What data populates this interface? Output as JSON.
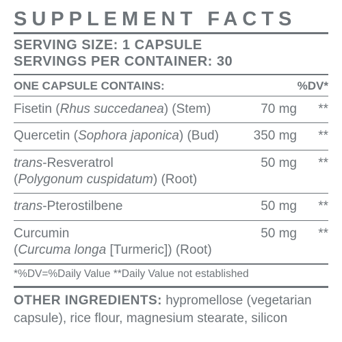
{
  "colors": {
    "text": "#6e7479",
    "background": "#ffffff"
  },
  "title": "SUPPLEMENT FACTS",
  "serving_size_label": "SERVING SIZE:",
  "serving_size_value": "1 CAPSULE",
  "servings_per_container_label": "SERVINGS PER CONTAINER:",
  "servings_per_container_value": "30",
  "table": {
    "header_left": "ONE CAPSULE CONTAINS:",
    "header_dv": "%DV*",
    "rows": [
      {
        "name": "Fisetin",
        "source": "Rhus succedanea",
        "part": "(Stem)",
        "amount": "70 mg",
        "dv": "**"
      },
      {
        "name": "Quercetin",
        "source": "Sophora japonica",
        "part": "(Bud)",
        "amount": "350 mg",
        "dv": "**"
      },
      {
        "name": "trans-Resveratrol",
        "source": "Polygonum cuspidatum",
        "part": "(Root)",
        "amount": "50 mg",
        "dv": "**",
        "source_newline": true
      },
      {
        "name": "trans-Pterostilbene",
        "source": "",
        "part": "",
        "amount": "50 mg",
        "dv": "**"
      },
      {
        "name": "Curcumin",
        "source": "Curcuma longa",
        "part": "[Turmeric]) (Root)",
        "amount": "50 mg",
        "dv": "**",
        "source_newline": true,
        "no_close_paren_before_part": true
      }
    ]
  },
  "footnote": "*%DV=%Daily Value **Daily Value not established",
  "other_label": "OTHER INGREDIENTS:",
  "other_text": "hypromellose (vegetarian capsule), rice flour, magnesium stearate, silicon"
}
